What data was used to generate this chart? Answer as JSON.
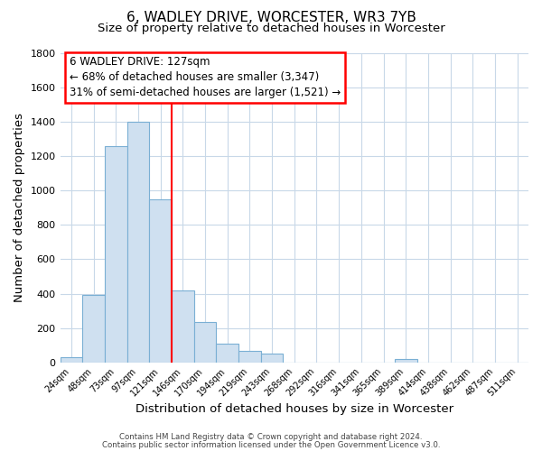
{
  "title": "6, WADLEY DRIVE, WORCESTER, WR3 7YB",
  "subtitle": "Size of property relative to detached houses in Worcester",
  "xlabel": "Distribution of detached houses by size in Worcester",
  "ylabel": "Number of detached properties",
  "footer_line1": "Contains HM Land Registry data © Crown copyright and database right 2024.",
  "footer_line2": "Contains public sector information licensed under the Open Government Licence v3.0.",
  "bins": [
    "24sqm",
    "48sqm",
    "73sqm",
    "97sqm",
    "121sqm",
    "146sqm",
    "170sqm",
    "194sqm",
    "219sqm",
    "243sqm",
    "268sqm",
    "292sqm",
    "316sqm",
    "341sqm",
    "365sqm",
    "389sqm",
    "414sqm",
    "438sqm",
    "462sqm",
    "487sqm",
    "511sqm"
  ],
  "values": [
    30,
    390,
    1260,
    1400,
    950,
    420,
    235,
    110,
    68,
    50,
    0,
    0,
    0,
    0,
    0,
    18,
    0,
    0,
    0,
    0,
    0
  ],
  "bar_color": "#cfe0f0",
  "bar_edge_color": "#7aafd4",
  "vline_x_index": 4,
  "vline_color": "red",
  "annotation_line1": "6 WADLEY DRIVE: 127sqm",
  "annotation_line2": "← 68% of detached houses are smaller (3,347)",
  "annotation_line3": "31% of semi-detached houses are larger (1,521) →",
  "ylim": [
    0,
    1800
  ],
  "yticks": [
    0,
    200,
    400,
    600,
    800,
    1000,
    1200,
    1400,
    1600,
    1800
  ],
  "background_color": "#ffffff",
  "grid_color": "#c8d8e8",
  "title_fontsize": 11,
  "subtitle_fontsize": 9.5,
  "axis_label_fontsize": 9.5
}
